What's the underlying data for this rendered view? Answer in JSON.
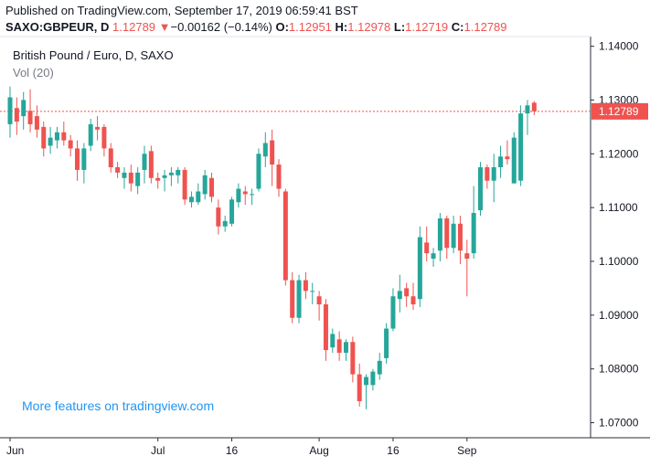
{
  "header": {
    "published": "Published on TradingView.com, September 17, 2019 06:59:41 BST"
  },
  "quote": {
    "symbol": "SAXO:GBPEUR, D",
    "last": "1.12789",
    "arrow": "▼",
    "change": "−0.00162 (−0.14%)",
    "o_label": "O:",
    "o_value": "1.12951",
    "h_label": "H:",
    "h_value": "1.12978",
    "l_label": "L:",
    "l_value": "1.12719",
    "c_label": "C:",
    "c_value": "1.12789"
  },
  "legend": {
    "title": "British Pound / Euro, D, SAXO",
    "indicator": "Vol (20)"
  },
  "promo": "More features on tradingview.com",
  "colors": {
    "up": "#26a69a",
    "down": "#ef5350",
    "price_line": "#ef5350",
    "promo": "#2196f3"
  },
  "chart_data": {
    "type": "candlestick",
    "y_ticks": [
      "1.07000",
      "1.08000",
      "1.09000",
      "1.10000",
      "1.11000",
      "1.12000",
      "1.13000",
      "1.14000"
    ],
    "ylim": [
      1.0672,
      1.1418
    ],
    "x_ticks": [
      {
        "label": "Jun",
        "index": 0
      },
      {
        "label": "Jul",
        "index": 22
      },
      {
        "label": "16",
        "index": 33
      },
      {
        "label": "Aug",
        "index": 46
      },
      {
        "label": "16",
        "index": 57
      },
      {
        "label": "Sep",
        "index": 68
      }
    ],
    "last_price": 1.12789,
    "last_price_label": "1.12789",
    "candles": [
      {
        "o": 1.1255,
        "h": 1.1325,
        "l": 1.123,
        "c": 1.1305
      },
      {
        "o": 1.1285,
        "h": 1.1305,
        "l": 1.1235,
        "c": 1.126
      },
      {
        "o": 1.127,
        "h": 1.1315,
        "l": 1.1245,
        "c": 1.13
      },
      {
        "o": 1.128,
        "h": 1.132,
        "l": 1.124,
        "c": 1.1255
      },
      {
        "o": 1.127,
        "h": 1.129,
        "l": 1.123,
        "c": 1.1245
      },
      {
        "o": 1.125,
        "h": 1.126,
        "l": 1.1195,
        "c": 1.121
      },
      {
        "o": 1.1215,
        "h": 1.125,
        "l": 1.12,
        "c": 1.123
      },
      {
        "o": 1.1225,
        "h": 1.125,
        "l": 1.121,
        "c": 1.124
      },
      {
        "o": 1.124,
        "h": 1.126,
        "l": 1.1215,
        "c": 1.1225
      },
      {
        "o": 1.1225,
        "h": 1.1235,
        "l": 1.1195,
        "c": 1.121
      },
      {
        "o": 1.121,
        "h": 1.1225,
        "l": 1.115,
        "c": 1.117
      },
      {
        "o": 1.117,
        "h": 1.122,
        "l": 1.1145,
        "c": 1.121
      },
      {
        "o": 1.1215,
        "h": 1.1265,
        "l": 1.1205,
        "c": 1.1255
      },
      {
        "o": 1.125,
        "h": 1.127,
        "l": 1.1225,
        "c": 1.1245
      },
      {
        "o": 1.125,
        "h": 1.1255,
        "l": 1.1195,
        "c": 1.121
      },
      {
        "o": 1.121,
        "h": 1.122,
        "l": 1.1165,
        "c": 1.1175
      },
      {
        "o": 1.1175,
        "h": 1.1185,
        "l": 1.1155,
        "c": 1.1165
      },
      {
        "o": 1.1155,
        "h": 1.1175,
        "l": 1.1135,
        "c": 1.1165
      },
      {
        "o": 1.1165,
        "h": 1.118,
        "l": 1.113,
        "c": 1.1145
      },
      {
        "o": 1.114,
        "h": 1.1175,
        "l": 1.1125,
        "c": 1.1165
      },
      {
        "o": 1.117,
        "h": 1.1215,
        "l": 1.1145,
        "c": 1.12
      },
      {
        "o": 1.1205,
        "h": 1.1215,
        "l": 1.1145,
        "c": 1.1155
      },
      {
        "o": 1.1155,
        "h": 1.1165,
        "l": 1.1135,
        "c": 1.115
      },
      {
        "o": 1.1155,
        "h": 1.117,
        "l": 1.113,
        "c": 1.116
      },
      {
        "o": 1.116,
        "h": 1.1175,
        "l": 1.114,
        "c": 1.1165
      },
      {
        "o": 1.116,
        "h": 1.1175,
        "l": 1.1145,
        "c": 1.117
      },
      {
        "o": 1.117,
        "h": 1.1175,
        "l": 1.1105,
        "c": 1.1115
      },
      {
        "o": 1.111,
        "h": 1.113,
        "l": 1.11,
        "c": 1.112
      },
      {
        "o": 1.111,
        "h": 1.1145,
        "l": 1.1105,
        "c": 1.113
      },
      {
        "o": 1.1125,
        "h": 1.117,
        "l": 1.1115,
        "c": 1.116
      },
      {
        "o": 1.1155,
        "h": 1.1165,
        "l": 1.111,
        "c": 1.112
      },
      {
        "o": 1.11,
        "h": 1.1115,
        "l": 1.105,
        "c": 1.1065
      },
      {
        "o": 1.1065,
        "h": 1.1085,
        "l": 1.1055,
        "c": 1.1075
      },
      {
        "o": 1.107,
        "h": 1.112,
        "l": 1.1065,
        "c": 1.1115
      },
      {
        "o": 1.111,
        "h": 1.1145,
        "l": 1.11,
        "c": 1.1135
      },
      {
        "o": 1.113,
        "h": 1.114,
        "l": 1.1105,
        "c": 1.1125
      },
      {
        "o": 1.1125,
        "h": 1.1135,
        "l": 1.1105,
        "c": 1.1125
      },
      {
        "o": 1.1135,
        "h": 1.121,
        "l": 1.113,
        "c": 1.12
      },
      {
        "o": 1.1195,
        "h": 1.124,
        "l": 1.1175,
        "c": 1.122
      },
      {
        "o": 1.1225,
        "h": 1.1245,
        "l": 1.114,
        "c": 1.118
      },
      {
        "o": 1.118,
        "h": 1.119,
        "l": 1.112,
        "c": 1.1135
      },
      {
        "o": 1.113,
        "h": 1.1135,
        "l": 1.0955,
        "c": 1.0965
      },
      {
        "o": 1.0965,
        "h": 1.098,
        "l": 1.0885,
        "c": 1.0895
      },
      {
        "o": 1.0895,
        "h": 1.0975,
        "l": 1.0885,
        "c": 1.0965
      },
      {
        "o": 1.0965,
        "h": 1.098,
        "l": 1.093,
        "c": 1.0945
      },
      {
        "o": 1.0945,
        "h": 1.096,
        "l": 1.092,
        "c": 1.0945
      },
      {
        "o": 1.0935,
        "h": 1.0945,
        "l": 1.089,
        "c": 1.092
      },
      {
        "o": 1.092,
        "h": 1.093,
        "l": 1.0815,
        "c": 1.0835
      },
      {
        "o": 1.084,
        "h": 1.0875,
        "l": 1.083,
        "c": 1.0865
      },
      {
        "o": 1.0855,
        "h": 1.087,
        "l": 1.0815,
        "c": 1.083
      },
      {
        "o": 1.083,
        "h": 1.0855,
        "l": 1.0815,
        "c": 1.085
      },
      {
        "o": 1.085,
        "h": 1.086,
        "l": 1.0775,
        "c": 1.079
      },
      {
        "o": 1.079,
        "h": 1.081,
        "l": 1.073,
        "c": 1.074
      },
      {
        "o": 1.077,
        "h": 1.079,
        "l": 1.0725,
        "c": 1.0785
      },
      {
        "o": 1.077,
        "h": 1.08,
        "l": 1.076,
        "c": 1.0795
      },
      {
        "o": 1.079,
        "h": 1.083,
        "l": 1.078,
        "c": 1.0815
      },
      {
        "o": 1.082,
        "h": 1.0885,
        "l": 1.081,
        "c": 1.0875
      },
      {
        "o": 1.0875,
        "h": 1.095,
        "l": 1.087,
        "c": 1.0935
      },
      {
        "o": 1.093,
        "h": 1.0975,
        "l": 1.0905,
        "c": 1.0945
      },
      {
        "o": 1.095,
        "h": 1.096,
        "l": 1.0915,
        "c": 1.0935
      },
      {
        "o": 1.0935,
        "h": 1.096,
        "l": 1.091,
        "c": 1.092
      },
      {
        "o": 1.093,
        "h": 1.1065,
        "l": 1.0915,
        "c": 1.1045
      },
      {
        "o": 1.1035,
        "h": 1.1065,
        "l": 1.1,
        "c": 1.1015
      },
      {
        "o": 1.1005,
        "h": 1.1025,
        "l": 1.099,
        "c": 1.1015
      },
      {
        "o": 1.102,
        "h": 1.109,
        "l": 1.1,
        "c": 1.108
      },
      {
        "o": 1.108,
        "h": 1.1085,
        "l": 1.1005,
        "c": 1.1025
      },
      {
        "o": 1.1025,
        "h": 1.1085,
        "l": 1.1015,
        "c": 1.107
      },
      {
        "o": 1.107,
        "h": 1.1085,
        "l": 1.0995,
        "c": 1.102
      },
      {
        "o": 1.1015,
        "h": 1.104,
        "l": 1.0935,
        "c": 1.1005
      },
      {
        "o": 1.1015,
        "h": 1.114,
        "l": 1.1005,
        "c": 1.109
      },
      {
        "o": 1.1095,
        "h": 1.1185,
        "l": 1.1085,
        "c": 1.1175
      },
      {
        "o": 1.1175,
        "h": 1.118,
        "l": 1.1135,
        "c": 1.115
      },
      {
        "o": 1.115,
        "h": 1.12,
        "l": 1.111,
        "c": 1.1175
      },
      {
        "o": 1.1175,
        "h": 1.1215,
        "l": 1.1155,
        "c": 1.1195
      },
      {
        "o": 1.1195,
        "h": 1.1225,
        "l": 1.118,
        "c": 1.119
      },
      {
        "o": 1.1145,
        "h": 1.124,
        "l": 1.1145,
        "c": 1.123
      },
      {
        "o": 1.115,
        "h": 1.129,
        "l": 1.114,
        "c": 1.1275
      },
      {
        "o": 1.1275,
        "h": 1.13,
        "l": 1.1235,
        "c": 1.129
      },
      {
        "o": 1.1295,
        "h": 1.1298,
        "l": 1.1272,
        "c": 1.1279
      }
    ]
  }
}
